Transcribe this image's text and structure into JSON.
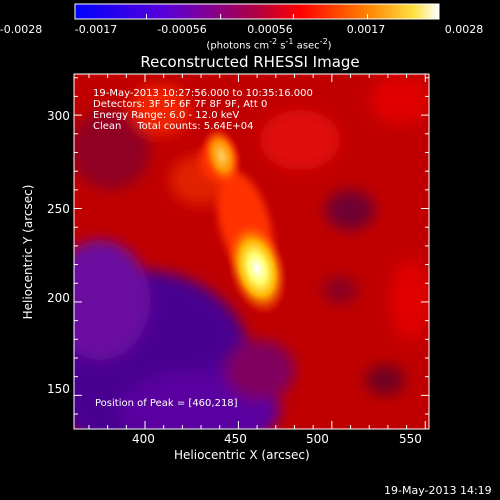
{
  "colorbar": {
    "tick_labels": [
      "-0.0028",
      "-0.0017",
      "-0.00056",
      "0.00056",
      "0.0017",
      "0.0028"
    ],
    "units_main": "(photons cm",
    "units_sup1": "-2",
    "units_mid": " s",
    "units_sup2": "-1",
    "units_end": " asec",
    "units_sup3": "-2",
    "units_close": ")"
  },
  "chart_data": {
    "type": "heatmap",
    "title": "Reconstructed RHESSI Image",
    "xlabel": "Heliocentric X (arcsec)",
    "ylabel": "Heliocentric Y (arcsec)",
    "xlim": [
      362,
      552
    ],
    "ylim": [
      132,
      322
    ],
    "x_ticks": [
      400,
      450,
      500,
      550
    ],
    "y_ticks": [
      150,
      200,
      250,
      300
    ],
    "colorbar_range": [
      -0.0028,
      0.0028
    ],
    "colormap": "red-temperature (blue-purple to red to yellow-white)",
    "peak_position": [
      460,
      218
    ],
    "sources": [
      {
        "x": 460,
        "y": 218,
        "relative_intensity": 1.0
      },
      {
        "x": 441,
        "y": 278,
        "relative_intensity": 0.55
      }
    ],
    "annotations": [
      "19-May-2013 10:27:56.000 to 10:35:16.000",
      "Detectors: 3F 5F 6F 7F 8F 9F, Att 0",
      "Energy Range: 6.0 - 12.0 keV",
      "Clean     Total counts: 5.64E+04",
      "Position of Peak = [460,218]"
    ]
  },
  "footer": {
    "timestamp": "19-May-2013 14:19"
  }
}
